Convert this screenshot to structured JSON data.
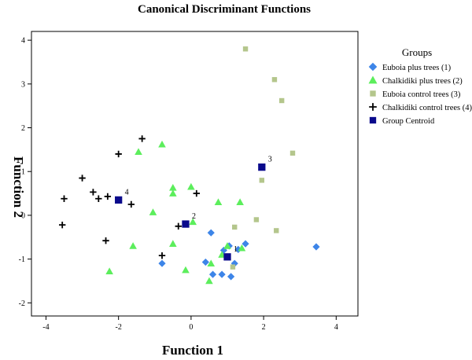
{
  "chart_data": {
    "type": "scatter",
    "title": "Canonical Discriminant Functions",
    "xlabel": "Function 1",
    "ylabel": "Function 2",
    "xlim": [
      -4.4,
      4.6
    ],
    "ylim": [
      -2.3,
      4.2
    ],
    "xticks": [
      "-4",
      "-2",
      "0",
      "2",
      "4"
    ],
    "yticks": [
      "-2",
      "-1",
      "0",
      "1",
      "2",
      "3",
      "4"
    ],
    "grid": false,
    "legend": {
      "title": "Groups",
      "placement": "right",
      "entries": [
        "Euboia plus trees (1)",
        "Chalkidiki plus trees (2)",
        "Euboia control trees (3)",
        "Chalkidiki control trees (4)",
        "Group Centroid"
      ]
    },
    "series": [
      {
        "name": "Euboia plus trees (1)",
        "marker": "diamond",
        "color": "#3d85e8",
        "points": [
          [
            -0.8,
            -1.1
          ],
          [
            0.4,
            -1.07
          ],
          [
            0.55,
            -0.4
          ],
          [
            0.6,
            -1.35
          ],
          [
            0.85,
            -1.35
          ],
          [
            0.9,
            -0.8
          ],
          [
            1.05,
            -0.7
          ],
          [
            1.1,
            -1.4
          ],
          [
            1.2,
            -1.1
          ],
          [
            1.3,
            -0.78
          ],
          [
            1.5,
            -0.65
          ],
          [
            3.45,
            -0.72
          ]
        ]
      },
      {
        "name": "Chalkidiki plus trees (2)",
        "marker": "triangle",
        "color": "#5cee5c",
        "points": [
          [
            -2.25,
            -1.28
          ],
          [
            -1.6,
            -0.7
          ],
          [
            -1.45,
            1.45
          ],
          [
            -1.05,
            0.07
          ],
          [
            -0.8,
            1.62
          ],
          [
            -0.5,
            0.63
          ],
          [
            -0.5,
            0.5
          ],
          [
            -0.5,
            -0.65
          ],
          [
            -0.15,
            -1.25
          ],
          [
            0.0,
            0.65
          ],
          [
            0.05,
            -0.15
          ],
          [
            0.5,
            -1.5
          ],
          [
            0.55,
            -1.1
          ],
          [
            0.75,
            0.3
          ],
          [
            0.85,
            -0.9
          ],
          [
            1.0,
            -0.7
          ],
          [
            1.35,
            0.3
          ],
          [
            1.4,
            -0.75
          ]
        ]
      },
      {
        "name": "Euboia control trees (3)",
        "marker": "square",
        "color": "#b4c68c",
        "points": [
          [
            1.15,
            -1.18
          ],
          [
            1.2,
            -0.27
          ],
          [
            1.5,
            3.8
          ],
          [
            1.8,
            -0.1
          ],
          [
            1.95,
            0.8
          ],
          [
            2.3,
            3.1
          ],
          [
            2.35,
            -0.35
          ],
          [
            2.5,
            2.62
          ],
          [
            2.8,
            1.42
          ]
        ]
      },
      {
        "name": "Chalkidiki control trees (4)",
        "marker": "plus",
        "color": "#000000",
        "points": [
          [
            -3.55,
            -0.22
          ],
          [
            -3.5,
            0.38
          ],
          [
            -3.0,
            0.85
          ],
          [
            -2.7,
            0.53
          ],
          [
            -2.55,
            0.38
          ],
          [
            -2.3,
            0.43
          ],
          [
            -2.35,
            -0.58
          ],
          [
            -2.0,
            1.4
          ],
          [
            -1.65,
            0.25
          ],
          [
            -1.35,
            1.75
          ],
          [
            -0.8,
            -0.92
          ],
          [
            -0.35,
            -0.25
          ],
          [
            0.15,
            0.5
          ]
        ]
      }
    ],
    "centroids": {
      "name": "Group Centroid",
      "marker": "square",
      "color": "#0a0a8c",
      "points": [
        {
          "label": "1",
          "x": 1.0,
          "y": -0.95
        },
        {
          "label": "2",
          "x": -0.15,
          "y": -0.2
        },
        {
          "label": "3",
          "x": 1.95,
          "y": 1.1
        },
        {
          "label": "4",
          "x": -2.0,
          "y": 0.35
        }
      ]
    }
  }
}
